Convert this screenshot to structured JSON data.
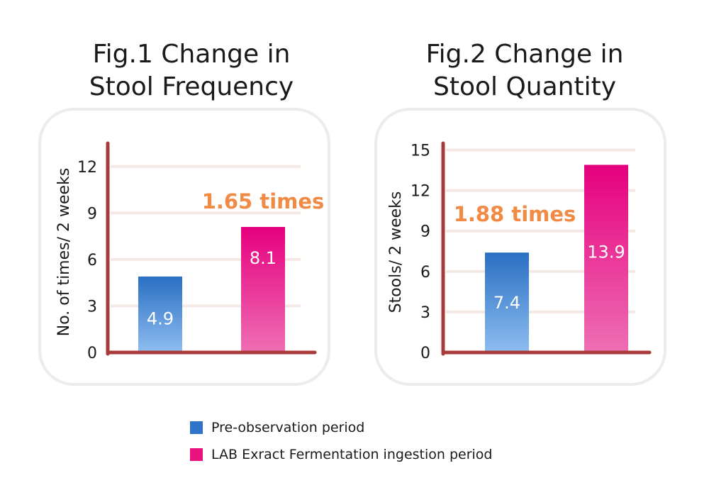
{
  "chart_data": [
    {
      "type": "bar",
      "title": "Fig.1 Change in Stool Frequency",
      "title_lines": [
        "Fig.1 Change in",
        "Stool Frequency"
      ],
      "ylabel": "No. of times/ 2 weeks",
      "xlabel": "",
      "ylim": [
        0,
        13.5
      ],
      "yticks": [
        0,
        3,
        6,
        9,
        12
      ],
      "series": [
        {
          "name": "Pre-observation period",
          "values": [
            4.9
          ]
        },
        {
          "name": "LAB Exract Fermentation ingestion period",
          "values": [
            8.1
          ]
        }
      ],
      "value_labels": [
        "4.9",
        "8.1"
      ],
      "annotation": "1.65 times",
      "grid": true
    },
    {
      "type": "bar",
      "title": "Fig.2 Change in Stool Quantity",
      "title_lines": [
        "Fig.2 Change in",
        "Stool Quantity"
      ],
      "ylabel": "Stools/ 2 weeks",
      "xlabel": "",
      "ylim": [
        0,
        15.5
      ],
      "yticks": [
        0,
        3,
        6,
        9,
        12,
        15
      ],
      "series": [
        {
          "name": "Pre-observation period",
          "values": [
            7.4
          ]
        },
        {
          "name": "LAB Exract Fermentation ingestion period",
          "values": [
            13.9
          ]
        }
      ],
      "value_labels": [
        "7.4",
        "13.9"
      ],
      "annotation": "1.88 times",
      "grid": true
    }
  ],
  "legend": {
    "placement": "bottom-center",
    "items": [
      {
        "label": "Pre-observation period",
        "color": "#2f74c8"
      },
      {
        "label": "LAB Exract Fermentation ingestion period",
        "color": "#e8127f"
      }
    ]
  },
  "colors": {
    "pre_top": "#2a6fc2",
    "pre_bottom": "#8ebdf0",
    "lab_top": "#e6007e",
    "lab_bottom": "#ee6fb4",
    "axis": "#a83a3a",
    "annotation": "#f08a45",
    "grid": "#f4e8e4"
  }
}
